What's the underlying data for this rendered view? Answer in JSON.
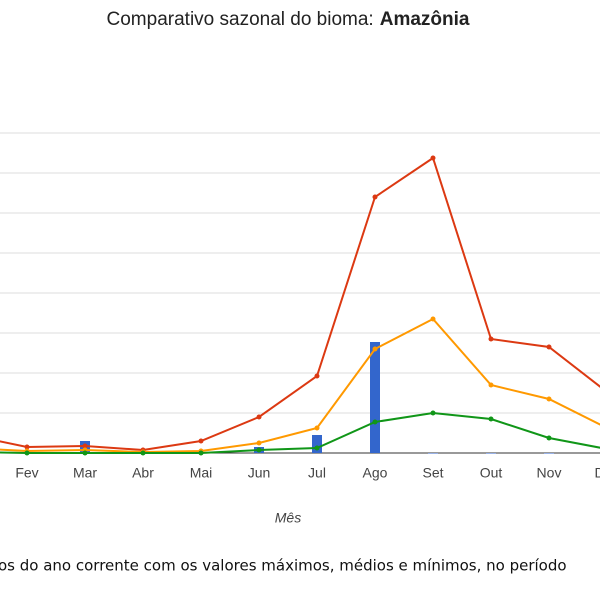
{
  "chart_data": {
    "type": "line",
    "title": "Comparativo sazonal do bioma:",
    "title_emphasis": "Amazônia",
    "x_label": "Mês",
    "caption": "os do ano corrente com os valores máximos, médios e mínimos, no período",
    "categories": [
      null,
      "Fev",
      "Mar",
      "Abr",
      "Mai",
      "Jun",
      "Jul",
      "Ago",
      "Set",
      "Out",
      "Nov",
      "Dez"
    ],
    "series": [
      {
        "type": "bar",
        "color": "#3366cc",
        "values": [
          0,
          0,
          300,
          0,
          0,
          150,
          450,
          2775,
          0,
          0,
          0,
          0
        ]
      },
      {
        "type": "line",
        "color": "#dc3912",
        "values": [
          450,
          150,
          175,
          75,
          300,
          900,
          1925,
          6400,
          7375,
          2850,
          2650,
          1525
        ]
      },
      {
        "type": "line",
        "color": "#ff9900",
        "values": [
          125,
          50,
          75,
          25,
          50,
          250,
          625,
          2600,
          3350,
          1700,
          1350,
          625
        ]
      },
      {
        "type": "line",
        "color": "#109618",
        "values": [
          25,
          0,
          0,
          0,
          0,
          75,
          125,
          775,
          1000,
          850,
          375,
          100
        ]
      }
    ],
    "ylim": [
      0,
      8000
    ],
    "yticks": [
      0,
      1000,
      2000,
      3000,
      4000,
      5000,
      6000,
      7000,
      8000
    ],
    "grid": true
  }
}
